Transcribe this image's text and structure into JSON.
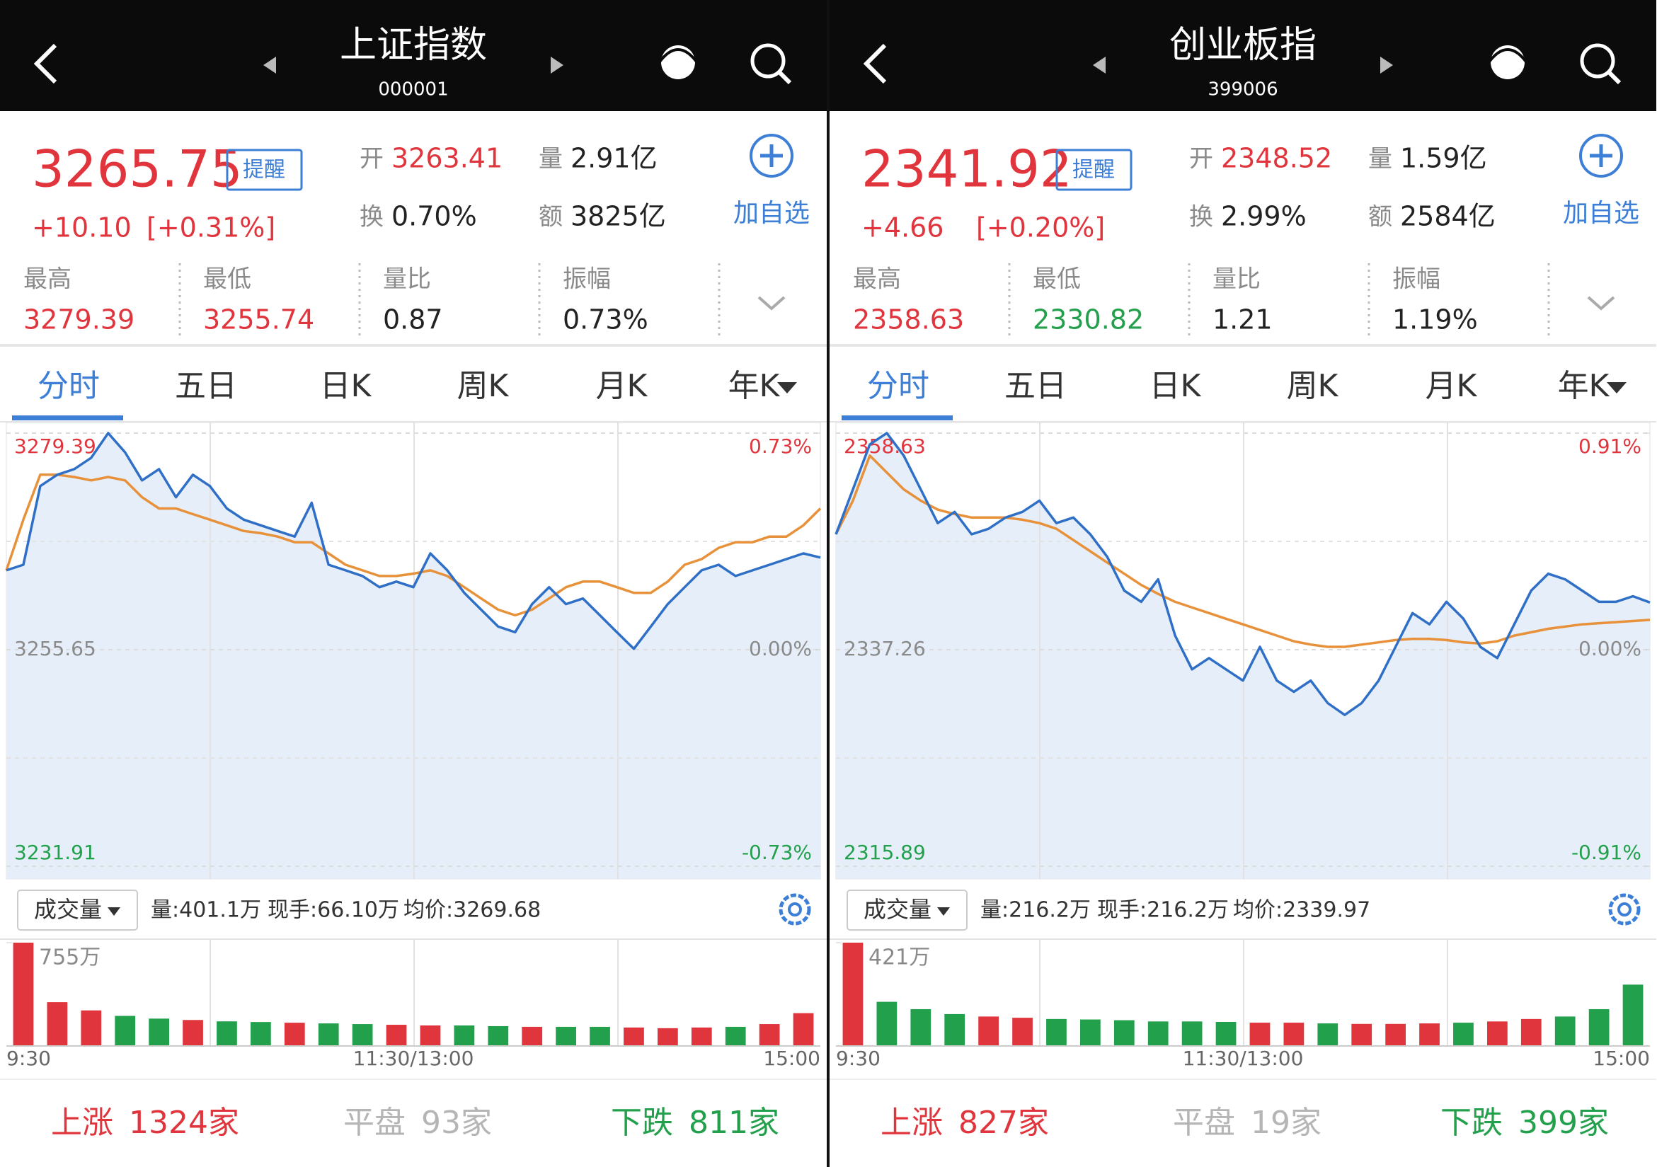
{
  "panels": [
    {
      "header": {
        "title": "上证指数",
        "code": "000001"
      },
      "quote": {
        "price": "3265.75",
        "change": "+10.10",
        "change_pct": "[+0.31%]",
        "alert": "提醒",
        "open_label": "开",
        "open": "3263.41",
        "volume_label": "量",
        "volume": "2.91亿",
        "turnover_label": "换",
        "turnover": "0.70%",
        "amount_label": "额",
        "amount": "3825亿",
        "add": "加自选"
      },
      "stats": [
        {
          "label": "最高",
          "value": "3279.39",
          "color": "#e0353d"
        },
        {
          "label": "最低",
          "value": "3255.74",
          "color": "#e0353d"
        },
        {
          "label": "量比",
          "value": "0.87",
          "color": "#222222"
        },
        {
          "label": "振幅",
          "value": "0.73%",
          "color": "#222222"
        }
      ],
      "tabs": [
        "分时",
        "五日",
        "日K",
        "周K",
        "月K",
        "年K"
      ],
      "chart": {
        "ylim": [
          3231.91,
          3279.39
        ],
        "yticks": [
          3231.91,
          3255.65,
          3279.39
        ],
        "y2lim": [
          -0.73,
          0.73
        ],
        "y2ticks": [
          {
            "value": -0.73,
            "label": "-0.73%"
          },
          {
            "value": 0,
            "label": "0.00%"
          },
          {
            "value": 0.73,
            "label": "0.73%"
          }
        ],
        "price_color": "#2f6fc6",
        "avg_color": "#e8913b",
        "price": [
          3264.35,
          3264.96,
          3273.59,
          3274.83,
          3275.44,
          3276.68,
          3279.39,
          3277.29,
          3274.21,
          3275.44,
          3272.36,
          3274.83,
          3273.59,
          3271.13,
          3269.9,
          3269.28,
          3268.66,
          3268.05,
          3271.75,
          3264.96,
          3264.35,
          3263.73,
          3262.5,
          3263.11,
          3262.5,
          3266.2,
          3264.35,
          3261.88,
          3260.03,
          3258.18,
          3257.57,
          3260.65,
          3262.5,
          3260.65,
          3261.26,
          3259.42,
          3257.57,
          3255.74,
          3258.18,
          3260.65,
          3262.5,
          3264.35,
          3264.96,
          3263.73,
          3264.35,
          3264.96,
          3265.58,
          3266.2,
          3265.75
        ],
        "avg": [
          3264.35,
          3269.9,
          3274.83,
          3274.83,
          3274.58,
          3274.21,
          3274.58,
          3274.21,
          3272.36,
          3271.13,
          3271.13,
          3270.51,
          3269.9,
          3269.28,
          3268.66,
          3268.42,
          3268.05,
          3267.43,
          3267.43,
          3266.2,
          3264.96,
          3264.35,
          3263.73,
          3263.73,
          3263.98,
          3264.35,
          3263.73,
          3262.5,
          3261.26,
          3260.03,
          3259.42,
          3260.03,
          3261.26,
          3262.5,
          3263.11,
          3263.11,
          3262.5,
          3261.88,
          3261.88,
          3263.11,
          3264.96,
          3265.58,
          3266.81,
          3267.43,
          3267.43,
          3268.05,
          3268.05,
          3269.28,
          3271.13
        ]
      },
      "volume_bar": {
        "selector": "成交量",
        "volume": "量:401.1万",
        "hand": "现手:66.10万",
        "avg": "均价:3269.68"
      },
      "volume_chart": {
        "ylim": [
          0,
          755
        ],
        "yticks": [
          {
            "value": 755,
            "label": "755万"
          }
        ],
        "up_color": "#e0353d",
        "down_color": "#22a04b",
        "values": [
          755,
          320,
          260,
          220,
          200,
          190,
          180,
          175,
          170,
          165,
          160,
          155,
          150,
          150,
          145,
          140,
          140,
          140,
          135,
          130,
          135,
          140,
          160,
          240
        ],
        "times": [
          "9:30",
          "11:30/13:00",
          "15:00"
        ]
      },
      "breadth": [
        {
          "label": "上涨",
          "count": "1324家",
          "color": "#e0353d"
        },
        {
          "label": "平盘",
          "count": "93家",
          "color": "#b5b5b5"
        },
        {
          "label": "下跌",
          "count": "811家",
          "color": "#22a04b"
        }
      ]
    },
    {
      "header": {
        "title": "创业板指",
        "code": "399006"
      },
      "quote": {
        "price": "2341.92",
        "change": "+4.66",
        "change_pct": "[+0.20%]",
        "alert": "提醒",
        "open_label": "开",
        "open": "2348.52",
        "volume_label": "量",
        "volume": "1.59亿",
        "turnover_label": "换",
        "turnover": "2.99%",
        "amount_label": "额",
        "amount": "2584亿",
        "add": "加自选"
      },
      "stats": [
        {
          "label": "最高",
          "value": "2358.63",
          "color": "#e0353d"
        },
        {
          "label": "最低",
          "value": "2330.82",
          "color": "#22a04b"
        },
        {
          "label": "量比",
          "value": "1.21",
          "color": "#222222"
        },
        {
          "label": "振幅",
          "value": "1.19%",
          "color": "#222222"
        }
      ],
      "tabs": [
        "分时",
        "五日",
        "日K",
        "周K",
        "月K",
        "年K"
      ],
      "chart": {
        "ylim": [
          2315.89,
          2358.63
        ],
        "yticks": [
          2315.89,
          2337.26,
          2358.63
        ],
        "y2lim": [
          -0.91,
          0.91
        ],
        "y2ticks": [
          {
            "value": -0.91,
            "label": "-0.91%"
          },
          {
            "value": 0,
            "label": "0.00%"
          },
          {
            "value": 0.91,
            "label": "0.91%"
          }
        ],
        "price_color": "#2f6fc6",
        "avg_color": "#e8913b",
        "price": [
          2348.64,
          2353.08,
          2357.52,
          2358.63,
          2356.41,
          2353.08,
          2349.75,
          2350.86,
          2348.64,
          2349.19,
          2350.3,
          2350.86,
          2351.97,
          2349.75,
          2350.3,
          2348.64,
          2346.42,
          2343.09,
          2341.98,
          2344.2,
          2338.65,
          2335.32,
          2336.43,
          2335.32,
          2334.21,
          2337.54,
          2334.21,
          2333.1,
          2334.21,
          2331.99,
          2330.82,
          2331.99,
          2334.21,
          2337.54,
          2340.87,
          2339.76,
          2341.98,
          2340.31,
          2337.54,
          2336.43,
          2339.76,
          2343.09,
          2344.75,
          2344.2,
          2343.09,
          2341.98,
          2341.98,
          2342.53,
          2341.92
        ],
        "avg": [
          2348.64,
          2351.97,
          2356.41,
          2354.74,
          2353.08,
          2351.97,
          2351.08,
          2350.64,
          2350.3,
          2350.3,
          2350.3,
          2350.08,
          2349.75,
          2349.19,
          2348.08,
          2346.97,
          2345.86,
          2344.75,
          2343.64,
          2342.76,
          2341.98,
          2341.42,
          2340.87,
          2340.31,
          2339.76,
          2339.2,
          2338.65,
          2338.09,
          2337.76,
          2337.54,
          2337.54,
          2337.76,
          2337.98,
          2338.21,
          2338.32,
          2338.32,
          2338.21,
          2337.98,
          2337.87,
          2338.09,
          2338.65,
          2338.98,
          2339.32,
          2339.54,
          2339.76,
          2339.87,
          2339.98,
          2340.09,
          2340.2
        ]
      },
      "volume_bar": {
        "selector": "成交量",
        "volume": "量:216.2万",
        "hand": "现手:216.2万",
        "avg": "均价:2339.97"
      },
      "volume_chart": {
        "ylim": [
          0,
          421
        ],
        "yticks": [
          {
            "value": 421,
            "label": "421万"
          }
        ],
        "up_color": "#e0353d",
        "down_color": "#22a04b",
        "values": [
          421,
          180,
          150,
          130,
          120,
          115,
          110,
          108,
          105,
          100,
          100,
          98,
          95,
          95,
          92,
          90,
          90,
          92,
          95,
          100,
          110,
          120,
          150,
          250
        ],
        "times": [
          "9:30",
          "11:30/13:00",
          "15:00"
        ]
      },
      "breadth": [
        {
          "label": "上涨",
          "count": "827家",
          "color": "#e0353d"
        },
        {
          "label": "平盘",
          "count": "19家",
          "color": "#b5b5b5"
        },
        {
          "label": "下跌",
          "count": "399家",
          "color": "#22a04b"
        }
      ]
    }
  ]
}
